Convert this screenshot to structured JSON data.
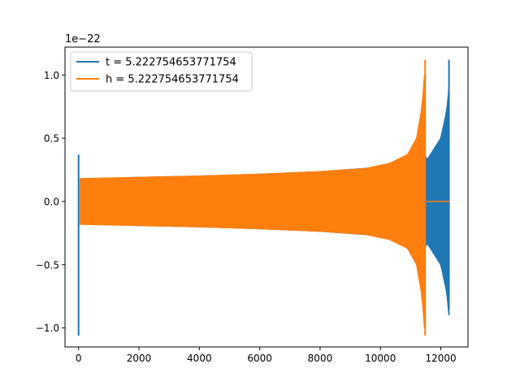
{
  "chart_data": {
    "type": "line",
    "offset_label": "1e−22",
    "xlim": [
      -450,
      12900
    ],
    "ylim": [
      -1.15,
      1.22
    ],
    "x_ticks": [
      0,
      2000,
      4000,
      6000,
      8000,
      10000,
      12000
    ],
    "x_tick_labels": [
      "0",
      "2000",
      "4000",
      "6000",
      "8000",
      "10000",
      "12000"
    ],
    "y_ticks": [
      -1.0,
      -0.5,
      0.0,
      0.5,
      1.0
    ],
    "y_tick_labels": [
      "−1.0",
      "−0.5",
      "0.0",
      "0.5",
      "1.0"
    ],
    "legend_position": "upper-left",
    "grid": false,
    "series": [
      {
        "name": "t = 5.222754653771754",
        "color": "#1f77b4",
        "x_range": [
          0,
          12300
        ],
        "start_spike": {
          "x": 0,
          "max": 0.37,
          "min": -1.06
        },
        "envelope": [
          {
            "x": 60,
            "amp": 0.175
          },
          {
            "x": 2000,
            "amp": 0.19
          },
          {
            "x": 4000,
            "amp": 0.2
          },
          {
            "x": 6000,
            "amp": 0.215
          },
          {
            "x": 8000,
            "amp": 0.235
          },
          {
            "x": 10000,
            "amp": 0.27
          },
          {
            "x": 10800,
            "amp": 0.33
          },
          {
            "x": 11300,
            "amp": 0.45
          },
          {
            "x": 11550,
            "amp": 0.33
          },
          {
            "x": 12000,
            "amp": 0.5
          },
          {
            "x": 12200,
            "amp": 0.72
          },
          {
            "x": 12270,
            "amp": 0.9
          }
        ],
        "end_spike": {
          "x": 12270,
          "max": 1.12,
          "min": -0.84
        }
      },
      {
        "name": "h = 5.222754653771754",
        "color": "#ff7f0e",
        "x_range": [
          0,
          12300
        ],
        "envelope": [
          {
            "x": 60,
            "amp": 0.18
          },
          {
            "x": 2000,
            "amp": 0.19
          },
          {
            "x": 4000,
            "amp": 0.2
          },
          {
            "x": 6000,
            "amp": 0.215
          },
          {
            "x": 8000,
            "amp": 0.235
          },
          {
            "x": 9500,
            "amp": 0.26
          },
          {
            "x": 10300,
            "amp": 0.3
          },
          {
            "x": 10900,
            "amp": 0.37
          },
          {
            "x": 11200,
            "amp": 0.5
          },
          {
            "x": 11380,
            "amp": 0.75
          },
          {
            "x": 11460,
            "amp": 1.0
          }
        ],
        "end_spike": {
          "x": 11480,
          "max": 1.12,
          "min": -1.06
        },
        "flat_after": {
          "from": 11520,
          "to": 12300,
          "value": 0.0
        }
      }
    ]
  }
}
